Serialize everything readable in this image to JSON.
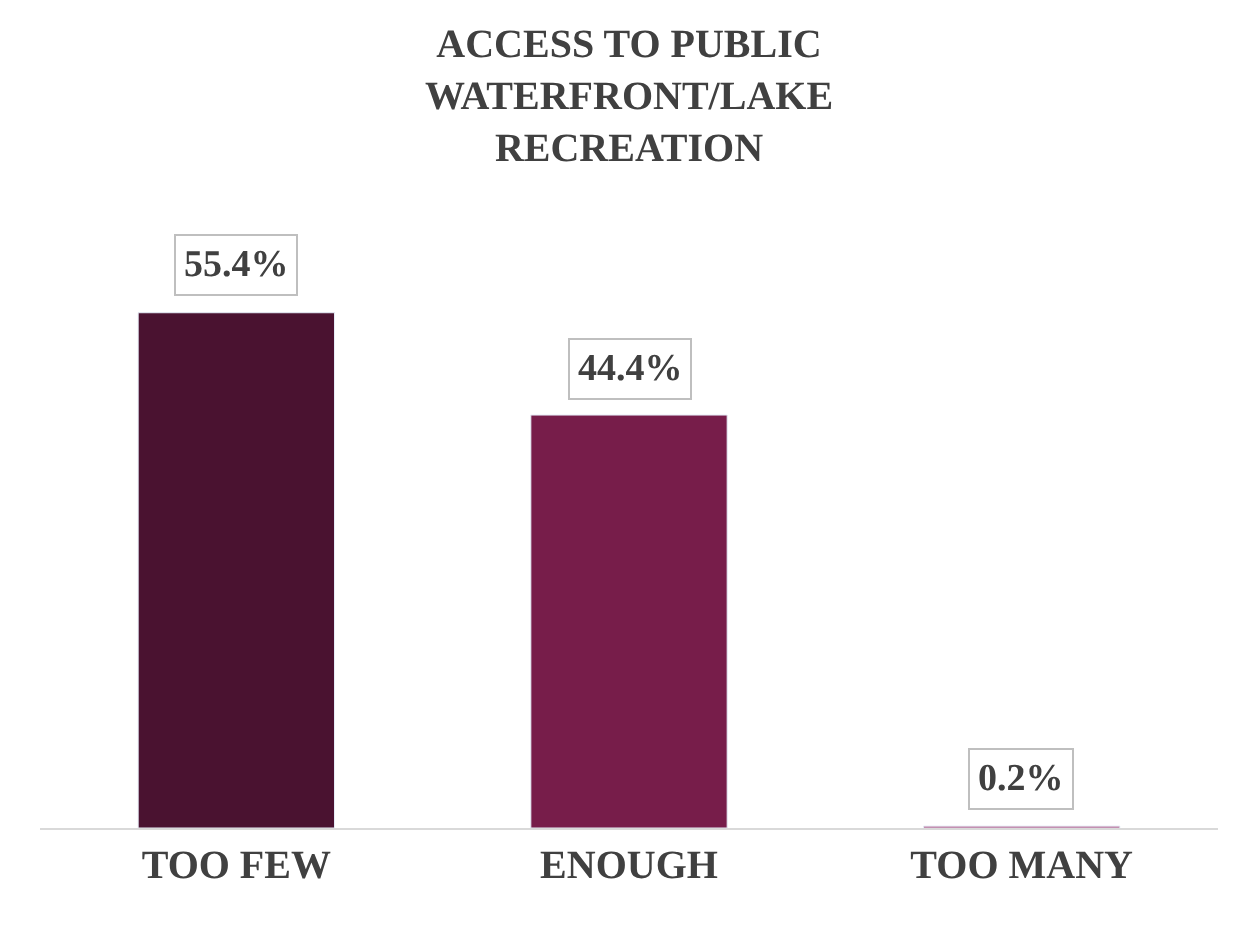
{
  "chart_data": {
    "type": "bar",
    "title": "ACCESS TO PUBLIC WATERFRONT/LAKE RECREATION",
    "categories": [
      "TOO FEW",
      "ENOUGH",
      "TOO MANY"
    ],
    "values": [
      55.4,
      44.4,
      0.2
    ],
    "colors": [
      "#4a1230",
      "#771d4a",
      "#a2356e"
    ],
    "value_labels": [
      "55.4%",
      "44.4%",
      "0.2%"
    ]
  }
}
